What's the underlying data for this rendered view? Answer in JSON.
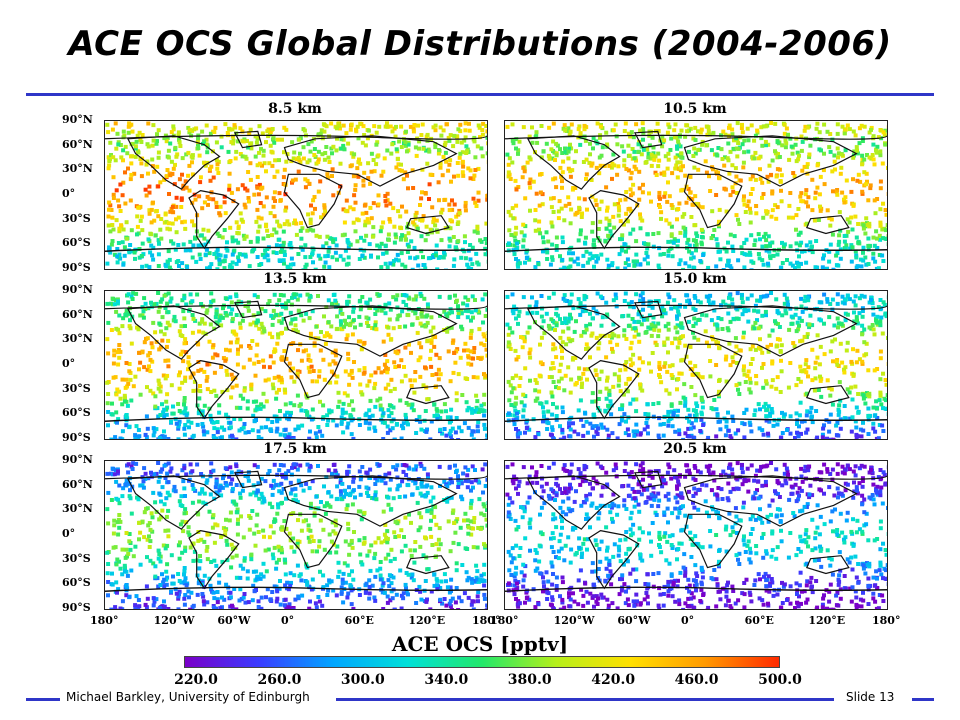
{
  "slide": {
    "title": "ACE OCS Global Distributions (2004-2006)",
    "footer_author": "Michael Barkley, University of Edinburgh",
    "footer_slide": "Slide 13"
  },
  "figure": {
    "panels": [
      {
        "title": "8.5 km",
        "band_levels": [
          0.75,
          0.55,
          0.85,
          0.9,
          0.72,
          0.4,
          0.38
        ]
      },
      {
        "title": "10.5 km",
        "band_levels": [
          0.72,
          0.52,
          0.8,
          0.82,
          0.66,
          0.4,
          0.36
        ]
      },
      {
        "title": "13.5 km",
        "band_levels": [
          0.45,
          0.5,
          0.8,
          0.84,
          0.68,
          0.34,
          0.22
        ]
      },
      {
        "title": "15.0 km",
        "band_levels": [
          0.3,
          0.4,
          0.7,
          0.74,
          0.6,
          0.28,
          0.12
        ]
      },
      {
        "title": "17.5 km",
        "band_levels": [
          0.12,
          0.24,
          0.55,
          0.62,
          0.45,
          0.22,
          0.08
        ]
      },
      {
        "title": "20.5 km",
        "band_levels": [
          0.02,
          0.05,
          0.28,
          0.4,
          0.28,
          0.06,
          0.02
        ]
      }
    ],
    "lat_labels": [
      "90°N",
      "60°N",
      "30°N",
      "0°",
      "30°S",
      "60°S",
      "90°S"
    ],
    "lon_labels": [
      "180°",
      "120°W",
      "60°W",
      "0°",
      "60°E",
      "120°E",
      "180°"
    ],
    "colorbar": {
      "title": "ACE OCS [pptv]",
      "ticks": [
        "220.0",
        "260.0",
        "300.0",
        "340.0",
        "380.0",
        "420.0",
        "460.0",
        "500.0"
      ],
      "min": 220.0,
      "max": 500.0,
      "colors": [
        "#7a00c8",
        "#3a3cff",
        "#00a6ff",
        "#00e0d8",
        "#22e86a",
        "#b6ef1a",
        "#ffe000",
        "#ff9a00",
        "#ff2a00"
      ]
    }
  }
}
